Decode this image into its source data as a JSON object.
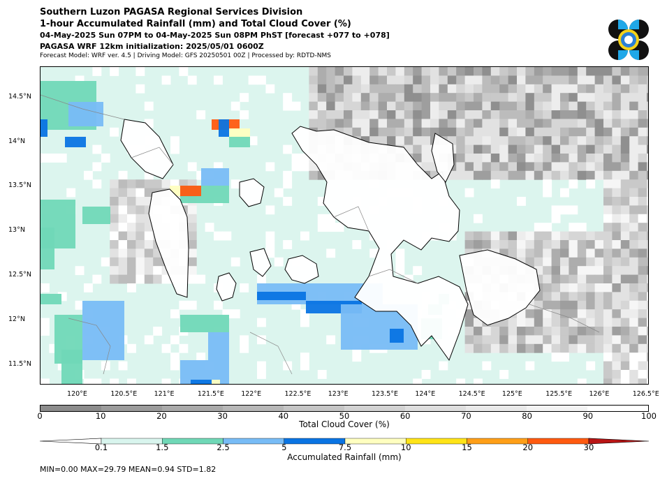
{
  "header": {
    "line1": "Southern Luzon PAGASA Regional Services Division",
    "line2": "1-hour Accumulated Rainfall (mm) and Total Cloud Cover (%)",
    "line3": "04-May-2025 Sun 07PM to 04-May-2025 Sun 08PM PhST [forecast +077 to +078]",
    "line4": "PAGASA WRF 12km initialization: 2025/05/01 0600Z",
    "line5": "Forecast Model: WRF ver. 4.5 | Driving Model: GFS 20250501 00Z | Processed by: RDTD-NMS"
  },
  "map": {
    "lon_labels": [
      "120°E",
      "120.5°E",
      "121°E",
      "121.5°E",
      "122°E",
      "122.5°E",
      "123°E",
      "123.5°E",
      "124°E",
      "124.5°E",
      "125°E",
      "125.5°E",
      "126°E",
      "126.5°E"
    ],
    "lat_labels": [
      "14.5°N",
      "14°N",
      "13.5°N",
      "13°N",
      "12.5°N",
      "12°N",
      "11.5°N"
    ],
    "extent": {
      "lon": [
        119.55,
        126.55
      ],
      "lat": [
        11.28,
        14.85
      ]
    },
    "colors": {
      "land_fill": "#ffffff",
      "sea_fill": "#dcf5ee",
      "coast": "#000000",
      "province_line": "#888888"
    }
  },
  "cloud_cover_bar": {
    "title": "Total Cloud Cover (%)",
    "ticks": [
      "0",
      "10",
      "20",
      "30",
      "40",
      "50",
      "60",
      "70",
      "80",
      "90",
      "100"
    ],
    "colors": [
      "#8c8c8c",
      "#9b9b9b",
      "#a9a9a9",
      "#b7b7b7",
      "#c5c5c5",
      "#d2d2d2",
      "#dedede",
      "#e9e9e9",
      "#f3f3f3",
      "#ffffff"
    ]
  },
  "rain_bar": {
    "title": "Accumulated Rainfall (mm)",
    "ticks": [
      "0.1",
      "1.5",
      "2.5",
      "5",
      "7.5",
      "10",
      "15",
      "20",
      "30"
    ],
    "colors": [
      "#ffffff",
      "#d9f5ee",
      "#70d8b7",
      "#78bcf6",
      "#0a74e3",
      "#ffffc0",
      "#ffe418",
      "#ff9f18",
      "#ff5a10",
      "#b91515"
    ]
  },
  "stats": {
    "text": "MIN=0.00   MAX=29.79   MEAN=0.94   STD=1.82"
  }
}
